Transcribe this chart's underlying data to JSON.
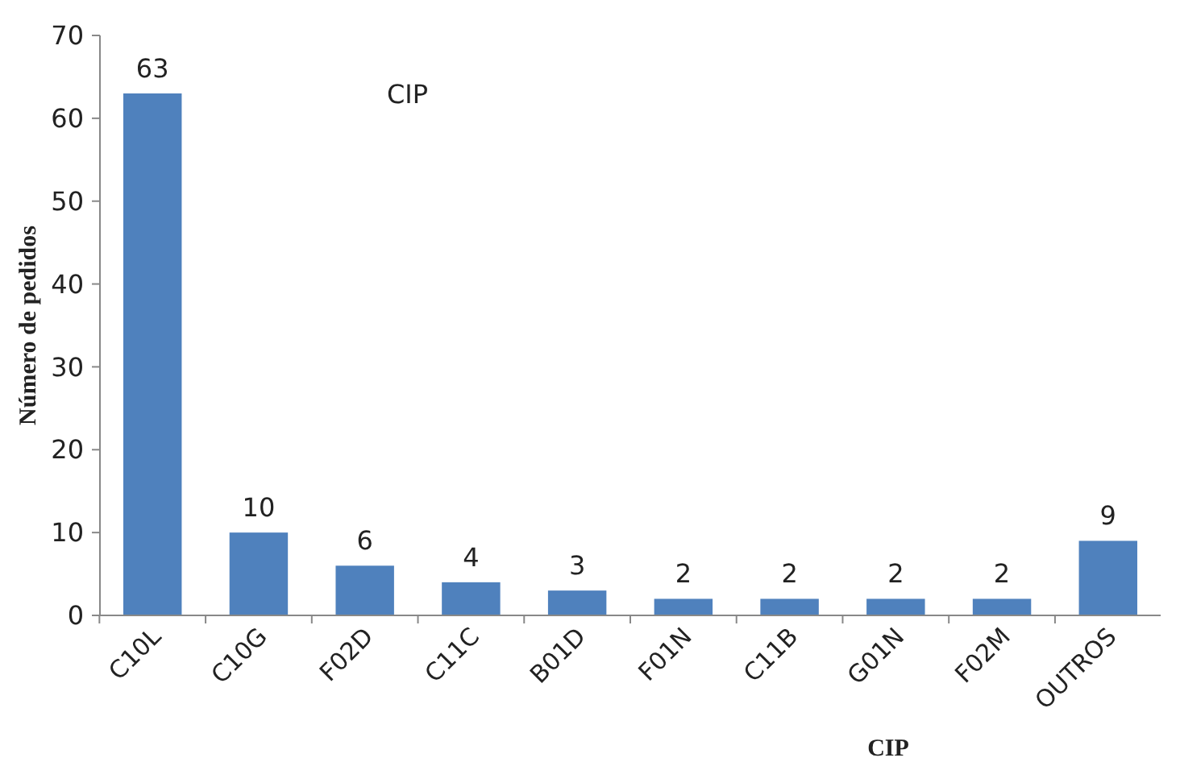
{
  "chart_data": {
    "type": "bar",
    "title": "CIP",
    "xlabel": "CIP",
    "ylabel": "Número de pedidos",
    "categories": [
      "C10L",
      "C10G",
      "F02D",
      "C11C",
      "B01D",
      "F01N",
      "C11B",
      "G01N",
      "F02M",
      "OUTROS"
    ],
    "values": [
      63,
      10,
      6,
      4,
      3,
      2,
      2,
      2,
      2,
      9
    ],
    "color": "#4f81bd",
    "data_labels": true,
    "ylim": [
      0,
      70
    ],
    "yticks": [
      0,
      10,
      20,
      30,
      40,
      50,
      60,
      70
    ],
    "grid": false
  }
}
